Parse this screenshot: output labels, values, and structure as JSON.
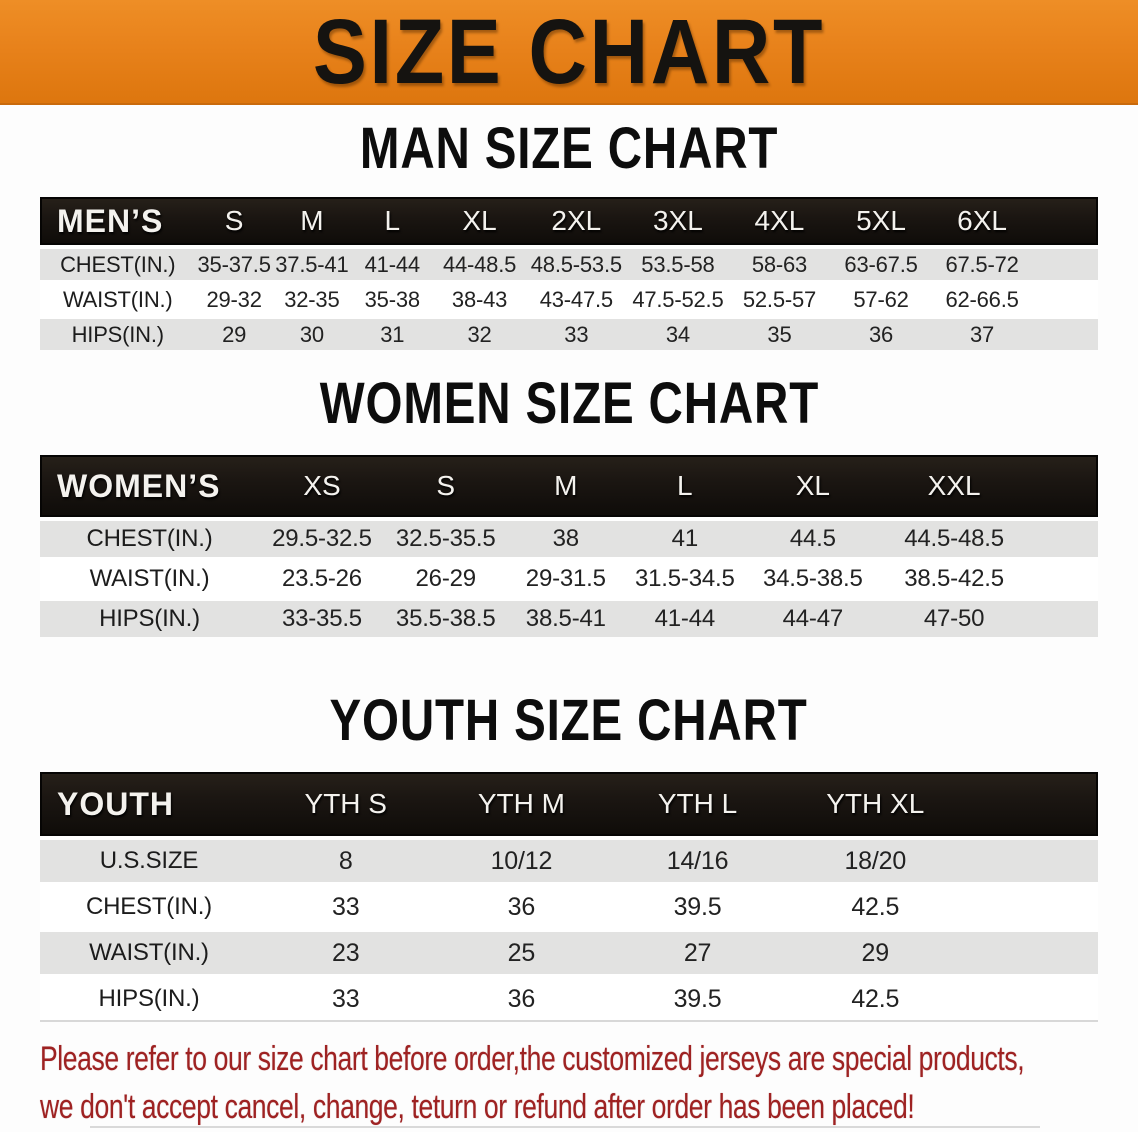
{
  "banner": {
    "title": "SIZE CHART"
  },
  "sections": [
    {
      "heading": "MAN SIZE CHART",
      "table": {
        "header_label": "MEN’S",
        "columns": [
          "S",
          "M",
          "L",
          "XL",
          "2XL",
          "3XL",
          "4XL",
          "5XL",
          "6XL"
        ],
        "rows": [
          {
            "label": "CHEST(IN.)",
            "values": [
              "35-37.5",
              "37.5-41",
              "41-44",
              "44-48.5",
              "48.5-53.5",
              "53.5-58",
              "58-63",
              "63-67.5",
              "67.5-72"
            ]
          },
          {
            "label": "WAIST(IN.)",
            "values": [
              "29-32",
              "32-35",
              "35-38",
              "38-43",
              "43-47.5",
              "47.5-52.5",
              "52.5-57",
              "57-62",
              "62-66.5"
            ]
          },
          {
            "label": "HIPS(IN.)",
            "values": [
              "29",
              "30",
              "31",
              "32",
              "33",
              "34",
              "35",
              "36",
              "37"
            ]
          }
        ]
      }
    },
    {
      "heading": "WOMEN SIZE CHART",
      "table": {
        "header_label": "WOMEN’S",
        "columns": [
          "XS",
          "S",
          "M",
          "L",
          "XL",
          "XXL"
        ],
        "rows": [
          {
            "label": "CHEST(IN.)",
            "values": [
              "29.5-32.5",
              "32.5-35.5",
              "38",
              "41",
              "44.5",
              "44.5-48.5"
            ]
          },
          {
            "label": "WAIST(IN.)",
            "values": [
              "23.5-26",
              "26-29",
              "29-31.5",
              "31.5-34.5",
              "34.5-38.5",
              "38.5-42.5"
            ]
          },
          {
            "label": "HIPS(IN.)",
            "values": [
              "33-35.5",
              "35.5-38.5",
              "38.5-41",
              "41-44",
              "44-47",
              "47-50"
            ]
          }
        ]
      }
    },
    {
      "heading": "YOUTH SIZE CHART",
      "table": {
        "header_label": "YOUTH",
        "columns": [
          "YTH S",
          "YTH M",
          "YTH L",
          "YTH XL"
        ],
        "rows": [
          {
            "label": "U.S.SIZE",
            "values": [
              "8",
              "10/12",
              "14/16",
              "18/20"
            ]
          },
          {
            "label": "CHEST(IN.)",
            "values": [
              "33",
              "36",
              "39.5",
              "42.5"
            ]
          },
          {
            "label": "WAIST(IN.)",
            "values": [
              "23",
              "25",
              "27",
              "29"
            ]
          },
          {
            "label": "HIPS(IN.)",
            "values": [
              "33",
              "36",
              "39.5",
              "42.5"
            ]
          }
        ]
      }
    }
  ],
  "footer": {
    "lines": [
      "Please refer to our size chart before order,the customized jerseys are special products,",
      "we don't accept cancel, change, teturn or refund after order has been placed!"
    ]
  },
  "theme": {
    "banner_orange": "#E8821B",
    "table_band_black": "#1B1612",
    "row_stripe_gray": "#E2E2E1",
    "disclaimer_red": "#9E2222"
  }
}
